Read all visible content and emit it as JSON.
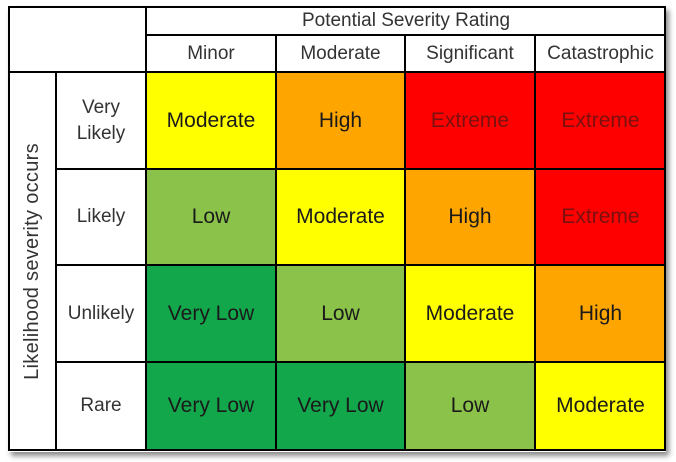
{
  "title": "Potential Severity Rating",
  "side_label": "Likelihood severity occurs",
  "columns": [
    "Minor",
    "Moderate",
    "Significant",
    "Catastrophic"
  ],
  "rows": [
    {
      "label_line1": "Very",
      "label_line2": "Likely",
      "cells": [
        {
          "text": "Moderate",
          "level": "moderate"
        },
        {
          "text": "High",
          "level": "high"
        },
        {
          "text": "Extreme",
          "level": "extreme"
        },
        {
          "text": "Extreme",
          "level": "extreme"
        }
      ]
    },
    {
      "label_line1": "Likely",
      "label_line2": "",
      "cells": [
        {
          "text": "Low",
          "level": "low"
        },
        {
          "text": "Moderate",
          "level": "moderate"
        },
        {
          "text": "High",
          "level": "high"
        },
        {
          "text": "Extreme",
          "level": "extreme"
        }
      ]
    },
    {
      "label_line1": "Unlikely",
      "label_line2": "",
      "cells": [
        {
          "text": "Very Low",
          "level": "very-low"
        },
        {
          "text": "Low",
          "level": "low"
        },
        {
          "text": "Moderate",
          "level": "moderate"
        },
        {
          "text": "High",
          "level": "high"
        }
      ]
    },
    {
      "label_line1": "Rare",
      "label_line2": "",
      "cells": [
        {
          "text": "Very Low",
          "level": "very-low"
        },
        {
          "text": "Very Low",
          "level": "very-low"
        },
        {
          "text": "Low",
          "level": "low"
        },
        {
          "text": "Moderate",
          "level": "moderate"
        }
      ]
    }
  ],
  "colors": {
    "very-low": "#12a74b",
    "low": "#8bc34a",
    "moderate": "#ffff00",
    "high": "#ffa500",
    "extreme": "#ff0000"
  }
}
